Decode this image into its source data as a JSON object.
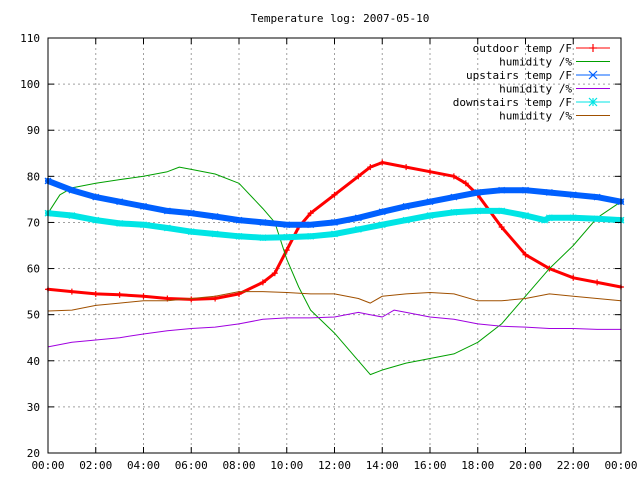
{
  "chart_data": {
    "type": "line",
    "title": "Temperature log: 2007-05-10",
    "xlabel": "",
    "ylabel": "",
    "xlim": [
      0,
      24
    ],
    "ylim": [
      20,
      110
    ],
    "grid": true,
    "legend_position": "top-right",
    "x_ticks": [
      {
        "v": 0,
        "label": "00:00"
      },
      {
        "v": 2,
        "label": "02:00"
      },
      {
        "v": 4,
        "label": "04:00"
      },
      {
        "v": 6,
        "label": "06:00"
      },
      {
        "v": 8,
        "label": "08:00"
      },
      {
        "v": 10,
        "label": "10:00"
      },
      {
        "v": 12,
        "label": "12:00"
      },
      {
        "v": 14,
        "label": "14:00"
      },
      {
        "v": 16,
        "label": "16:00"
      },
      {
        "v": 18,
        "label": "18:00"
      },
      {
        "v": 20,
        "label": "20:00"
      },
      {
        "v": 22,
        "label": "22:00"
      },
      {
        "v": 24,
        "label": "00:00"
      }
    ],
    "y_ticks": [
      {
        "v": 20,
        "label": "20"
      },
      {
        "v": 30,
        "label": "30"
      },
      {
        "v": 40,
        "label": "40"
      },
      {
        "v": 50,
        "label": "50"
      },
      {
        "v": 60,
        "label": "60"
      },
      {
        "v": 70,
        "label": "70"
      },
      {
        "v": 80,
        "label": "80"
      },
      {
        "v": 90,
        "label": "90"
      },
      {
        "v": 100,
        "label": "100"
      },
      {
        "v": 110,
        "label": "110"
      }
    ],
    "series": [
      {
        "name": "outdoor temp /F",
        "color": "#ff0000",
        "marker": "plus",
        "width": 3,
        "points": [
          [
            0,
            55.5
          ],
          [
            1,
            55
          ],
          [
            2,
            54.5
          ],
          [
            3,
            54.3
          ],
          [
            4,
            54
          ],
          [
            5,
            53.5
          ],
          [
            6,
            53.3
          ],
          [
            7,
            53.5
          ],
          [
            8,
            54.5
          ],
          [
            9,
            57
          ],
          [
            9.5,
            59
          ],
          [
            10,
            64
          ],
          [
            10.5,
            69
          ],
          [
            11,
            72
          ],
          [
            12,
            76
          ],
          [
            13,
            80
          ],
          [
            13.5,
            82
          ],
          [
            14,
            83
          ],
          [
            15,
            82
          ],
          [
            16,
            81
          ],
          [
            17,
            80
          ],
          [
            17.5,
            78.5
          ],
          [
            18,
            76
          ],
          [
            19,
            69
          ],
          [
            20,
            63
          ],
          [
            21,
            60
          ],
          [
            22,
            58
          ],
          [
            23,
            57
          ],
          [
            24,
            56
          ]
        ]
      },
      {
        "name": "humidity /%",
        "color": "#00a000",
        "marker": "none",
        "width": 1,
        "points": [
          [
            0,
            72
          ],
          [
            0.5,
            76
          ],
          [
            1,
            77.5
          ],
          [
            2,
            78.5
          ],
          [
            3,
            79.3
          ],
          [
            4,
            80
          ],
          [
            5,
            81
          ],
          [
            5.5,
            82
          ],
          [
            6,
            81.5
          ],
          [
            7,
            80.5
          ],
          [
            8,
            78.5
          ],
          [
            9,
            73
          ],
          [
            9.5,
            70
          ],
          [
            10,
            62
          ],
          [
            10.5,
            56
          ],
          [
            11,
            51
          ],
          [
            12,
            46
          ],
          [
            13,
            40
          ],
          [
            13.5,
            37
          ],
          [
            14,
            38
          ],
          [
            15,
            39.5
          ],
          [
            16,
            40.5
          ],
          [
            17,
            41.5
          ],
          [
            18,
            44
          ],
          [
            19,
            48
          ],
          [
            20,
            54
          ],
          [
            21,
            60
          ],
          [
            22,
            65
          ],
          [
            23,
            71
          ],
          [
            24,
            74.5
          ]
        ]
      },
      {
        "name": "upstairs temp /F",
        "color": "#0060ff",
        "marker": "x",
        "width": 6,
        "points": [
          [
            0,
            79
          ],
          [
            1,
            77
          ],
          [
            2,
            75.5
          ],
          [
            3,
            74.5
          ],
          [
            4,
            73.5
          ],
          [
            5,
            72.5
          ],
          [
            6,
            72
          ],
          [
            7,
            71.3
          ],
          [
            8,
            70.5
          ],
          [
            9,
            70
          ],
          [
            10,
            69.5
          ],
          [
            11,
            69.5
          ],
          [
            12,
            70
          ],
          [
            13,
            71
          ],
          [
            14,
            72.3
          ],
          [
            15,
            73.5
          ],
          [
            16,
            74.5
          ],
          [
            17,
            75.5
          ],
          [
            18,
            76.5
          ],
          [
            19,
            77
          ],
          [
            20,
            77
          ],
          [
            21,
            76.5
          ],
          [
            22,
            76
          ],
          [
            23,
            75.5
          ],
          [
            24,
            74.5
          ]
        ]
      },
      {
        "name": "humidity /%",
        "color": "#a000e0",
        "marker": "none",
        "width": 1,
        "points": [
          [
            0,
            43
          ],
          [
            1,
            44
          ],
          [
            2,
            44.5
          ],
          [
            3,
            45
          ],
          [
            4,
            45.8
          ],
          [
            5,
            46.5
          ],
          [
            6,
            47
          ],
          [
            7,
            47.3
          ],
          [
            8,
            48
          ],
          [
            9,
            49
          ],
          [
            10,
            49.3
          ],
          [
            11,
            49.3
          ],
          [
            12,
            49.5
          ],
          [
            13,
            50.5
          ],
          [
            13.5,
            50
          ],
          [
            14,
            49.5
          ],
          [
            14.5,
            51
          ],
          [
            15,
            50.5
          ],
          [
            16,
            49.5
          ],
          [
            17,
            49
          ],
          [
            18,
            48
          ],
          [
            19,
            47.5
          ],
          [
            20,
            47.3
          ],
          [
            21,
            47
          ],
          [
            22,
            47
          ],
          [
            23,
            46.8
          ],
          [
            24,
            46.8
          ]
        ]
      },
      {
        "name": "downstairs temp /F",
        "color": "#00e5e5",
        "marker": "star",
        "width": 6,
        "points": [
          [
            0,
            72
          ],
          [
            1,
            71.5
          ],
          [
            2,
            70.5
          ],
          [
            3,
            69.8
          ],
          [
            4,
            69.5
          ],
          [
            5,
            68.8
          ],
          [
            6,
            68
          ],
          [
            7,
            67.5
          ],
          [
            8,
            67
          ],
          [
            9,
            66.7
          ],
          [
            10,
            66.8
          ],
          [
            11,
            67
          ],
          [
            12,
            67.5
          ],
          [
            13,
            68.5
          ],
          [
            14,
            69.5
          ],
          [
            15,
            70.5
          ],
          [
            16,
            71.5
          ],
          [
            17,
            72.2
          ],
          [
            18,
            72.5
          ],
          [
            19,
            72.5
          ],
          [
            20,
            71.5
          ],
          [
            20.8,
            70.5
          ],
          [
            21,
            71
          ],
          [
            22,
            71
          ],
          [
            23,
            70.8
          ],
          [
            24,
            70.5
          ]
        ]
      },
      {
        "name": "humidity /%",
        "color": "#a05000",
        "marker": "none",
        "width": 1,
        "points": [
          [
            0,
            50.8
          ],
          [
            1,
            51
          ],
          [
            2,
            52
          ],
          [
            3,
            52.5
          ],
          [
            4,
            53
          ],
          [
            5,
            53
          ],
          [
            6,
            53.5
          ],
          [
            7,
            54
          ],
          [
            8,
            55
          ],
          [
            9,
            55
          ],
          [
            10,
            54.8
          ],
          [
            11,
            54.5
          ],
          [
            12,
            54.5
          ],
          [
            13,
            53.5
          ],
          [
            13.5,
            52.5
          ],
          [
            14,
            54
          ],
          [
            15,
            54.5
          ],
          [
            16,
            54.8
          ],
          [
            17,
            54.5
          ],
          [
            18,
            53
          ],
          [
            19,
            53
          ],
          [
            20,
            53.5
          ],
          [
            21,
            54.5
          ],
          [
            22,
            54
          ],
          [
            23,
            53.5
          ],
          [
            24,
            53
          ]
        ]
      }
    ]
  }
}
